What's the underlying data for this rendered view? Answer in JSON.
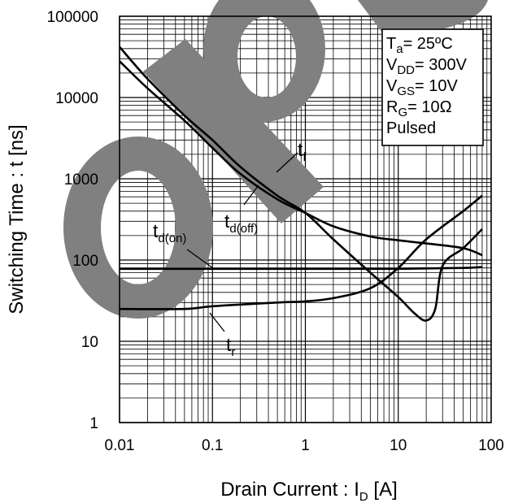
{
  "chart_data": {
    "type": "line",
    "title": "",
    "xlabel": "Drain Current : I",
    "xlabel_sub": "D",
    "xlabel_unit": " [A]",
    "ylabel": "Switching Time : t [ns]",
    "xscale": "log",
    "yscale": "log",
    "xlim": [
      0.01,
      100
    ],
    "ylim": [
      1,
      100000
    ],
    "grid": true,
    "x_ticks": [
      {
        "value": 0.01,
        "label": "0.01"
      },
      {
        "value": 0.1,
        "label": "0.1"
      },
      {
        "value": 1,
        "label": "1"
      },
      {
        "value": 10,
        "label": "10"
      },
      {
        "value": 100,
        "label": "100"
      }
    ],
    "y_ticks": [
      {
        "value": 1,
        "label": "1"
      },
      {
        "value": 10,
        "label": "10"
      },
      {
        "value": 100,
        "label": "100"
      },
      {
        "value": 1000,
        "label": "1000"
      },
      {
        "value": 10000,
        "label": "10000"
      },
      {
        "value": 100000,
        "label": "100000"
      }
    ],
    "conditions": [
      {
        "main": "T",
        "sub": "a",
        "rest": "= 25ºC"
      },
      {
        "main": "V",
        "sub": "DD",
        "rest": "= 300V"
      },
      {
        "main": "V",
        "sub": "GS",
        "rest": "= 10V"
      },
      {
        "main": "R",
        "sub": "G",
        "rest": "= 10Ω"
      },
      {
        "main": "Pulsed",
        "sub": "",
        "rest": ""
      }
    ],
    "series": [
      {
        "name": "tf",
        "label_main": "t",
        "label_sub": "f",
        "x": [
          0.01,
          0.02,
          0.05,
          0.1,
          0.2,
          0.5,
          1,
          2,
          5,
          10,
          15,
          20,
          25,
          30,
          50,
          80
        ],
        "y": [
          42000,
          17000,
          6000,
          3000,
          1400,
          620,
          380,
          180,
          70,
          35,
          22,
          18,
          25,
          85,
          140,
          240
        ]
      },
      {
        "name": "td(off)",
        "label_main": "t",
        "label_sub": "d(off)",
        "x": [
          0.01,
          0.02,
          0.05,
          0.1,
          0.2,
          0.5,
          1,
          2,
          5,
          10,
          20,
          50,
          80
        ],
        "y": [
          28000,
          13000,
          5200,
          2400,
          1150,
          560,
          380,
          260,
          195,
          175,
          160,
          140,
          115
        ]
      },
      {
        "name": "td(on)",
        "label_main": "t",
        "label_sub": "d(on)",
        "x": [
          0.01,
          0.1,
          1,
          10,
          50,
          80
        ],
        "y": [
          78,
          78,
          78,
          78,
          80,
          82
        ]
      },
      {
        "name": "tr",
        "label_main": "t",
        "label_sub": "r",
        "x": [
          0.01,
          0.05,
          0.1,
          0.5,
          1,
          2,
          5,
          10,
          20,
          50,
          80
        ],
        "y": [
          25,
          25,
          27,
          30,
          31,
          34,
          45,
          80,
          180,
          400,
          620
        ]
      }
    ]
  }
}
